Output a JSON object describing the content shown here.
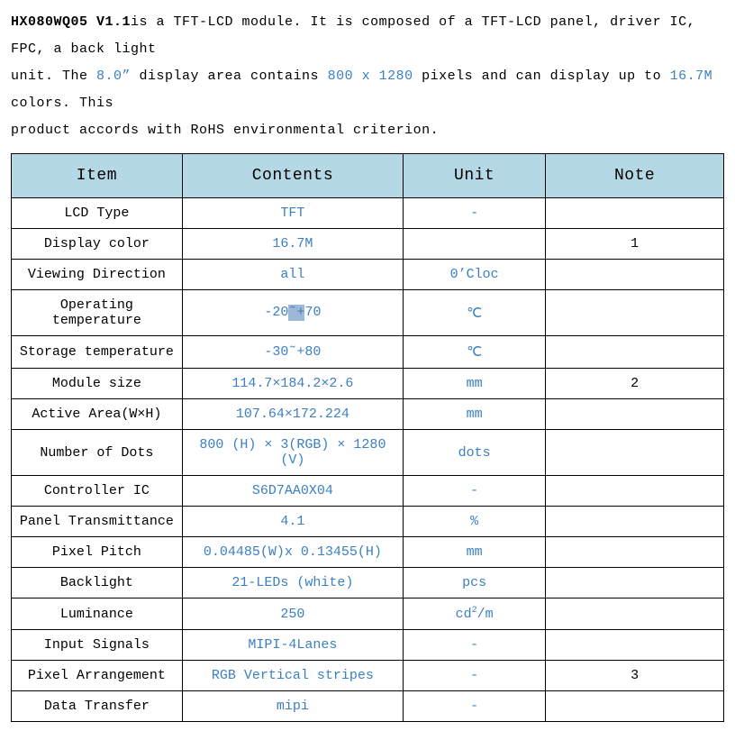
{
  "intro": {
    "product": "HX080WQ05 V1.1",
    "t1": "is a TFT-LCD module. It is composed of a TFT-LCD panel, driver IC, FPC, a back light",
    "t2a": "unit. The ",
    "size": "8.0”",
    "t2b": " display area contains ",
    "res": "800 x 1280",
    "t2c": " pixels and can display up to ",
    "colors": "16.7M",
    "t2d": " colors. This",
    "t3": "product accords with RoHS environmental criterion."
  },
  "headers": {
    "c1": "Item",
    "c2": "Contents",
    "c3": "Unit",
    "c4": "Note"
  },
  "rows": [
    {
      "item": "LCD Type",
      "contents": "TFT",
      "unit": "-",
      "note": ""
    },
    {
      "item": "Display color",
      "contents": "16.7M",
      "unit": "",
      "note": "1"
    },
    {
      "item": "Viewing Direction",
      "contents": "all",
      "unit": "0’Cloc",
      "note": ""
    },
    {
      "item": "Operating temperature",
      "contents_pre": "-20",
      "contents_sel": "˜+",
      "contents_post": "70",
      "unit": "℃",
      "note": ""
    },
    {
      "item": "Storage temperature",
      "contents": "-30˜+80",
      "unit": "℃",
      "note": ""
    },
    {
      "item": "Module size",
      "contents": "114.7×184.2×2.6",
      "unit": "mm",
      "note": "2"
    },
    {
      "item": "Active Area(W×H)",
      "contents": "107.64×172.224",
      "unit": "mm",
      "note": ""
    },
    {
      "item": "Number of Dots",
      "contents": "800 (H) × 3(RGB) × 1280 (V)",
      "unit": "dots",
      "note": ""
    },
    {
      "item": "Controller IC",
      "contents": "S6D7AA0X04",
      "unit": "-",
      "note": ""
    },
    {
      "item": "Panel Transmittance",
      "contents": "4.1",
      "unit": "%",
      "note": ""
    },
    {
      "item": "Pixel Pitch",
      "contents": "0.04485(W)x 0.13455(H)",
      "unit": "mm",
      "note": ""
    },
    {
      "item": "Backlight",
      "contents": "21-LEDs (white)",
      "unit": "pcs",
      "note": ""
    },
    {
      "item": "Luminance",
      "contents": "250",
      "unit_pre": "cd",
      "unit_sup": "2",
      "unit_post": "/m",
      "note": ""
    },
    {
      "item": "Input Signals",
      "contents": "MIPI-4Lanes",
      "unit": "-",
      "note": ""
    },
    {
      "item": "Pixel Arrangement",
      "contents": "RGB Vertical stripes",
      "unit": "-",
      "note": "3"
    },
    {
      "item": "Data Transfer",
      "contents": "mipi",
      "unit": "-",
      "note": ""
    }
  ],
  "colors": {
    "highlight": "#3b7fc4",
    "header_bg": "#b5d8e6",
    "selection_bg": "#9db8d6",
    "text": "#000000",
    "border": "#000000",
    "bg": "#ffffff"
  }
}
